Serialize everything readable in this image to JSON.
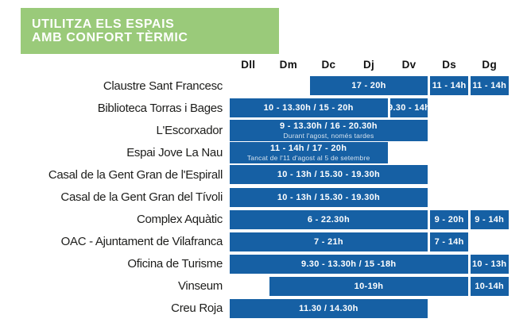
{
  "header": {
    "title_line1": "UTILITZA ELS ESPAIS",
    "title_line2": "AMB CONFORT TÈRMIC"
  },
  "colors": {
    "banner_green": "#9ACA7A",
    "bar_blue": "#1660A4",
    "label_text": "#1D1D1B",
    "bar_text": "#FFFFFF"
  },
  "chart_data": {
    "type": "table",
    "title": "UTILITZA ELS ESPAIS AMB CONFORT TÈRMIC",
    "columns": [
      "Dll",
      "Dm",
      "Dc",
      "Dj",
      "Dv",
      "Ds",
      "Dg"
    ],
    "rows": [
      {
        "label": "Claustre Sant Francesc",
        "bars": [
          {
            "days": "Dc-Dv",
            "col_start": 3,
            "col_end": 5,
            "text": "17 - 20h"
          },
          {
            "days": "Ds",
            "col_start": 6,
            "col_end": 6,
            "text": "11 - 14h"
          },
          {
            "days": "Dg",
            "col_start": 7,
            "col_end": 7,
            "text": "11 - 14h"
          }
        ]
      },
      {
        "label": "Biblioteca Torras i Bages",
        "bars": [
          {
            "days": "Dll-Dj",
            "col_start": 1,
            "col_end": 4,
            "text": "10 - 13.30h / 15 - 20h"
          },
          {
            "days": "Dv",
            "col_start": 5,
            "col_end": 5,
            "text": "9.30 - 14h"
          }
        ]
      },
      {
        "label": "L'Escorxador",
        "bars": [
          {
            "days": "Dll-Dv",
            "col_start": 1,
            "col_end": 5,
            "text": "9 - 13.30h / 16 - 20.30h",
            "sublabel": "Durant l'agost, només tardes"
          }
        ]
      },
      {
        "label": "Espai Jove La Nau",
        "bars": [
          {
            "days": "Dll-Dj",
            "col_start": 1,
            "col_end": 4,
            "text": "11 - 14h / 17 - 20h",
            "sublabel": "Tancat de l'11 d'agost al 5 de setembre"
          }
        ]
      },
      {
        "label": "Casal de la Gent Gran de l'Espirall",
        "bars": [
          {
            "days": "Dll-Dv",
            "col_start": 1,
            "col_end": 5,
            "text": "10 - 13h / 15.30 - 19.30h"
          }
        ]
      },
      {
        "label": "Casal de la Gent Gran del Tívoli",
        "bars": [
          {
            "days": "Dll-Dv",
            "col_start": 1,
            "col_end": 5,
            "text": "10 - 13h / 15.30 - 19.30h"
          }
        ]
      },
      {
        "label": "Complex Aquàtic",
        "bars": [
          {
            "days": "Dll-Dv",
            "col_start": 1,
            "col_end": 5,
            "text": "6 - 22.30h"
          },
          {
            "days": "Ds",
            "col_start": 6,
            "col_end": 6,
            "text": "9 - 20h"
          },
          {
            "days": "Dg",
            "col_start": 7,
            "col_end": 7,
            "text": "9 - 14h"
          }
        ]
      },
      {
        "label": "OAC - Ajuntament de Vilafranca",
        "bars": [
          {
            "days": "Dll-Dv",
            "col_start": 1,
            "col_end": 5,
            "text": "7 - 21h"
          },
          {
            "days": "Ds",
            "col_start": 6,
            "col_end": 6,
            "text": "7 - 14h"
          }
        ]
      },
      {
        "label": "Oficina de Turisme",
        "bars": [
          {
            "days": "Dll-Ds",
            "col_start": 1,
            "col_end": 6,
            "text": "9.30 - 13.30h / 15 -18h"
          },
          {
            "days": "Dg",
            "col_start": 7,
            "col_end": 7,
            "text": "10 - 13h"
          }
        ]
      },
      {
        "label": "Vinseum",
        "bars": [
          {
            "days": "Dm-Ds",
            "col_start": 2,
            "col_end": 6,
            "text": "10-19h"
          },
          {
            "days": "Dg",
            "col_start": 7,
            "col_end": 7,
            "text": "10-14h"
          }
        ]
      },
      {
        "label": "Creu Roja",
        "bars": [
          {
            "days": "Dll-Dv",
            "col_start": 1,
            "col_end": 5,
            "text": "11.30 / 14.30h"
          }
        ]
      }
    ]
  }
}
